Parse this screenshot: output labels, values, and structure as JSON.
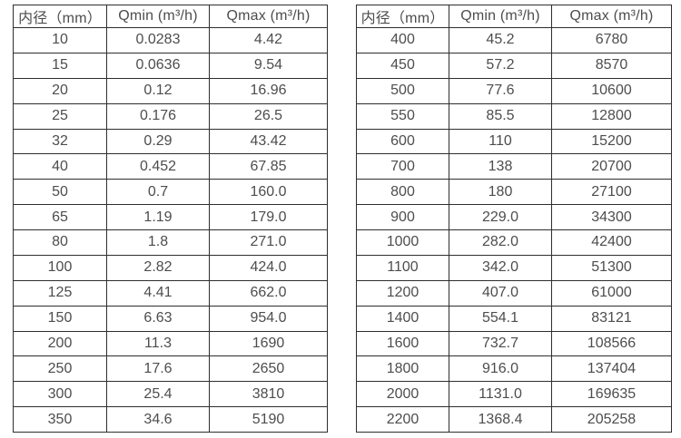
{
  "accent_colors": {
    "border": "#2e2e2e",
    "text": "#4d4d4d",
    "background": "#ffffff"
  },
  "tables": [
    {
      "name": "small-diameter-flow-table",
      "headers": [
        "内径（mm）",
        "Qmin (m³/h)",
        "Qmax (m³/h)"
      ],
      "rows": [
        [
          "10",
          "0.0283",
          "4.42"
        ],
        [
          "15",
          "0.0636",
          "9.54"
        ],
        [
          "20",
          "0.12",
          "16.96"
        ],
        [
          "25",
          "0.176",
          "26.5"
        ],
        [
          "32",
          "0.29",
          "43.42"
        ],
        [
          "40",
          "0.452",
          "67.85"
        ],
        [
          "50",
          "0.7",
          "160.0"
        ],
        [
          "65",
          "1.19",
          "179.0"
        ],
        [
          "80",
          "1.8",
          "271.0"
        ],
        [
          "100",
          "2.82",
          "424.0"
        ],
        [
          "125",
          "4.41",
          "662.0"
        ],
        [
          "150",
          "6.63",
          "954.0"
        ],
        [
          "200",
          "11.3",
          "1690"
        ],
        [
          "250",
          "17.6",
          "2650"
        ],
        [
          "300",
          "25.4",
          "3810"
        ],
        [
          "350",
          "34.6",
          "5190"
        ]
      ]
    },
    {
      "name": "large-diameter-flow-table",
      "headers": [
        "内径（mm）",
        "Qmin (m³/h)",
        "Qmax (m³/h)"
      ],
      "rows": [
        [
          "400",
          "45.2",
          "6780"
        ],
        [
          "450",
          "57.2",
          "8570"
        ],
        [
          "500",
          "77.6",
          "10600"
        ],
        [
          "550",
          "85.5",
          "12800"
        ],
        [
          "600",
          "110",
          "15200"
        ],
        [
          "700",
          "138",
          "20700"
        ],
        [
          "800",
          "180",
          "27100"
        ],
        [
          "900",
          "229.0",
          "34300"
        ],
        [
          "1000",
          "282.0",
          "42400"
        ],
        [
          "1100",
          "342.0",
          "51300"
        ],
        [
          "1200",
          "407.0",
          "61000"
        ],
        [
          "1400",
          "554.1",
          "83121"
        ],
        [
          "1600",
          "732.7",
          "108566"
        ],
        [
          "1800",
          "916.0",
          "137404"
        ],
        [
          "2000",
          "1131.0",
          "169635"
        ],
        [
          "2200",
          "1368.4",
          "205258"
        ]
      ]
    }
  ]
}
